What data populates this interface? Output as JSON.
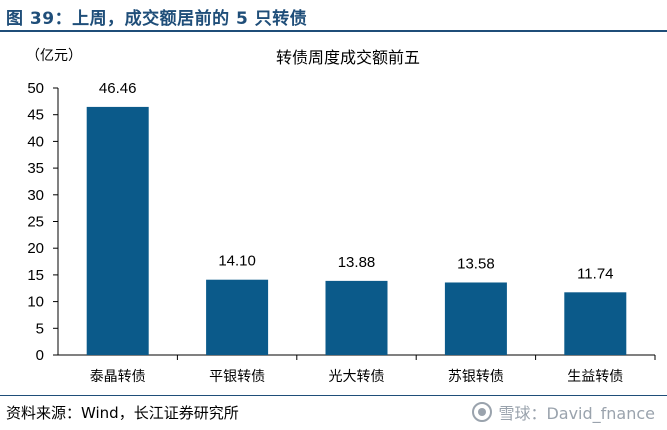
{
  "figure": {
    "title": "图 39：上周，成交额居前的 5 只转债",
    "source": "资料来源：Wind，长江证券研究所",
    "watermark": "雪球：David_fnance"
  },
  "colors": {
    "bar": "#0b5a8a",
    "title": "#1f4e79"
  },
  "chart_data": {
    "type": "bar",
    "title": "转债周度成交额前五",
    "ylabel": "（亿元）",
    "xlabel": "",
    "categories": [
      "泰晶转债",
      "平银转债",
      "光大转债",
      "苏银转债",
      "生益转债"
    ],
    "values": [
      46.46,
      14.1,
      13.88,
      13.58,
      11.74
    ],
    "value_labels": [
      "46.46",
      "14.10",
      "13.88",
      "13.58",
      "11.74"
    ],
    "ylim": [
      0,
      50
    ],
    "yticks": [
      0,
      5,
      10,
      15,
      20,
      25,
      30,
      35,
      40,
      45,
      50
    ],
    "grid": false
  }
}
